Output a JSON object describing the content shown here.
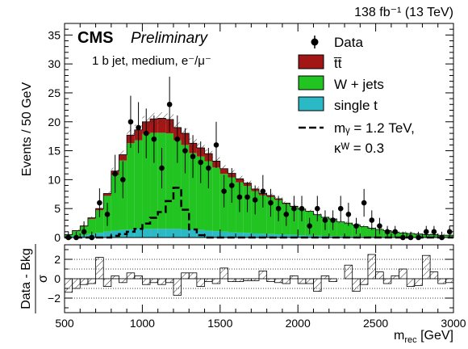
{
  "chart_data": [
    {
      "type": "histogram-stacked",
      "lumi_label": "138 fb⁻¹ (13 TeV)",
      "cms_label": "CMS",
      "preliminary_label": "Preliminary",
      "category_label": "1 b jet, medium, e⁻/μ⁻",
      "ylabel": "Events / 50 GeV",
      "xlim": [
        500,
        3000
      ],
      "ylim": [
        0,
        37
      ],
      "yticks": [
        "0",
        "5",
        "10",
        "15",
        "20",
        "25",
        "30",
        "35"
      ],
      "bin_edges": [
        500,
        550,
        600,
        650,
        700,
        750,
        800,
        850,
        900,
        950,
        1000,
        1050,
        1100,
        1150,
        1200,
        1250,
        1300,
        1350,
        1400,
        1450,
        1500,
        1550,
        1600,
        1650,
        1700,
        1750,
        1800,
        1850,
        1900,
        1950,
        2000,
        2050,
        2100,
        2150,
        2200,
        2250,
        2300,
        2350,
        2400,
        2450,
        2500,
        2550,
        2600,
        2650,
        2700,
        2750,
        2800,
        2850,
        2900,
        2950,
        3000
      ],
      "series": [
        {
          "name": "single t",
          "color": "#2bb9c6",
          "values": [
            0.2,
            0.3,
            0.4,
            0.6,
            0.8,
            1.0,
            1.2,
            1.3,
            1.4,
            1.5,
            1.5,
            1.5,
            1.5,
            1.5,
            1.5,
            1.4,
            1.4,
            1.3,
            1.2,
            1.1,
            1.0,
            0.9,
            0.85,
            0.8,
            0.7,
            0.65,
            0.6,
            0.55,
            0.5,
            0.45,
            0.4,
            0.35,
            0.3,
            0.28,
            0.25,
            0.22,
            0.2,
            0.18,
            0.16,
            0.14,
            0.12,
            0.1,
            0.09,
            0.08,
            0.07,
            0.06,
            0.05,
            0.05,
            0.04,
            0.04
          ]
        },
        {
          "name": "W + jets",
          "color": "#21c421",
          "values": [
            0.3,
            0.8,
            1.5,
            2.6,
            3.9,
            6.2,
            9.6,
            12.0,
            14.9,
            15.3,
            16.4,
            16.6,
            16.6,
            16.5,
            15.3,
            14.6,
            13.2,
            12.7,
            12.0,
            11.0,
            10.0,
            9.5,
            8.7,
            8.1,
            7.3,
            6.65,
            6.4,
            5.95,
            5.3,
            4.85,
            4.45,
            4.15,
            3.6,
            3.22,
            2.95,
            2.48,
            2.3,
            2.02,
            1.74,
            1.46,
            1.28,
            1.1,
            0.81,
            0.72,
            0.63,
            0.54,
            0.45,
            0.45,
            0.36,
            0.36
          ]
        },
        {
          "name": "t̄t̄",
          "color": "#a31616",
          "values": [
            0.0,
            0.1,
            0.1,
            0.2,
            0.3,
            0.4,
            0.7,
            1.0,
            1.4,
            1.8,
            2.1,
            2.4,
            2.5,
            2.4,
            2.2,
            2.0,
            1.7,
            1.5,
            1.3,
            1.1,
            0.9,
            0.7,
            0.6,
            0.5,
            0.4,
            0.3,
            0.25,
            0.2,
            0.15,
            0.1,
            0.05,
            0.05,
            0.05,
            0.0,
            0.0,
            0.0,
            0.0,
            0.0,
            0.0,
            0.0,
            0.0,
            0.0,
            0.0,
            0.0,
            0.0,
            0.0,
            0.0,
            0.0,
            0.0,
            0.0
          ]
        }
      ],
      "signal": {
        "name": "mᵧ = 1.2 TeV,",
        "kappa_label": "κᵂ = 0.3",
        "values": [
          0,
          0,
          0,
          0,
          0,
          0,
          0.3,
          0.6,
          1.0,
          1.5,
          2.4,
          3.4,
          4.4,
          6.3,
          8.6,
          4.8,
          1.4,
          0.4,
          0,
          0,
          0,
          0,
          0,
          0,
          0,
          0,
          0,
          0,
          0,
          0,
          0,
          0,
          0,
          0,
          0,
          0,
          0,
          0,
          0,
          0,
          0,
          0,
          0,
          0,
          0,
          0,
          0,
          0,
          0,
          0
        ]
      },
      "data": {
        "name": "Data",
        "points": [
          [
            525,
            0.0,
            1.0
          ],
          [
            575,
            0.0,
            1.0
          ],
          [
            625,
            1.0,
            1.8
          ],
          [
            675,
            0.0,
            1.0
          ],
          [
            725,
            6.0,
            2.5
          ],
          [
            775,
            4.0,
            2.0
          ],
          [
            825,
            11.0,
            3.3
          ],
          [
            875,
            10.0,
            3.2
          ],
          [
            925,
            20.0,
            4.5
          ],
          [
            975,
            19.0,
            4.4
          ],
          [
            1025,
            18.0,
            4.3
          ],
          [
            1075,
            17.0,
            4.1
          ],
          [
            1125,
            12.0,
            3.5
          ],
          [
            1175,
            23.0,
            4.8
          ],
          [
            1225,
            17.0,
            4.1
          ],
          [
            1275,
            15.0,
            3.9
          ],
          [
            1325,
            14.0,
            3.7
          ],
          [
            1375,
            13.0,
            3.6
          ],
          [
            1425,
            12.0,
            3.5
          ],
          [
            1475,
            16.0,
            4.0
          ],
          [
            1525,
            8.0,
            2.8
          ],
          [
            1575,
            9.0,
            3.0
          ],
          [
            1625,
            7.0,
            2.6
          ],
          [
            1675,
            7.0,
            2.6
          ],
          [
            1725,
            6.5,
            2.5
          ],
          [
            1775,
            8.0,
            2.8
          ],
          [
            1825,
            6.0,
            2.4
          ],
          [
            1875,
            5.0,
            2.2
          ],
          [
            1925,
            4.0,
            2.0
          ],
          [
            1975,
            5.0,
            2.2
          ],
          [
            2025,
            5.0,
            2.2
          ],
          [
            2075,
            2.0,
            1.4
          ],
          [
            2125,
            5.0,
            2.2
          ],
          [
            2175,
            3.0,
            1.7
          ],
          [
            2225,
            3.0,
            1.7
          ],
          [
            2275,
            5.0,
            2.2
          ],
          [
            2325,
            4.0,
            2.0
          ],
          [
            2375,
            2.0,
            1.4
          ],
          [
            2425,
            6.0,
            2.4
          ],
          [
            2475,
            3.0,
            1.7
          ],
          [
            2525,
            2.0,
            1.4
          ],
          [
            2575,
            1.0,
            1.0
          ],
          [
            2625,
            1.0,
            1.0
          ],
          [
            2675,
            0.0,
            1.0
          ],
          [
            2725,
            0.0,
            1.0
          ],
          [
            2775,
            0.0,
            1.0
          ],
          [
            2825,
            1.0,
            1.0
          ],
          [
            2875,
            1.0,
            1.0
          ],
          [
            2925,
            0.0,
            1.0
          ],
          [
            2975,
            1.0,
            1.0
          ]
        ]
      },
      "legend_position": "top-right"
    },
    {
      "type": "bar",
      "ylabel_numerator": "Data - Bkg",
      "ylabel_denominator": "σ",
      "xlabel": "mᵣₑ꜀ [GeV]",
      "xlabel_main": "m",
      "xlabel_sub": "rec",
      "xlabel_unit": " [GeV]",
      "xlim": [
        500,
        3000
      ],
      "ylim": [
        -3.5,
        3.5
      ],
      "yticks": [
        "−2",
        "0",
        "2"
      ],
      "xticks": [
        "500",
        "1000",
        "1500",
        "2000",
        "2500",
        "3000"
      ],
      "gridlines_y": [
        -2,
        -1,
        0,
        1,
        2
      ],
      "values": [
        -1.4,
        -1.0,
        -0.6,
        -0.5,
        2.2,
        -0.8,
        0.3,
        -0.4,
        0.6,
        0.3,
        -0.6,
        -0.4,
        -0.6,
        -0.4,
        -1.7,
        0.6,
        0.6,
        -0.8,
        -0.3,
        -0.5,
        1.1,
        -0.3,
        -0.3,
        -0.2,
        -0.2,
        0.8,
        -0.3,
        -0.4,
        -0.5,
        0.3,
        -0.5,
        -0.5,
        -1.3,
        0.3,
        -0.3,
        0.0,
        1.4,
        -1.3,
        -0.6,
        2.5,
        0.7,
        -0.5,
        0.3,
        1.0,
        -0.8,
        -0.7,
        2.4,
        0.7,
        -0.5,
        -0.4
      ]
    }
  ]
}
